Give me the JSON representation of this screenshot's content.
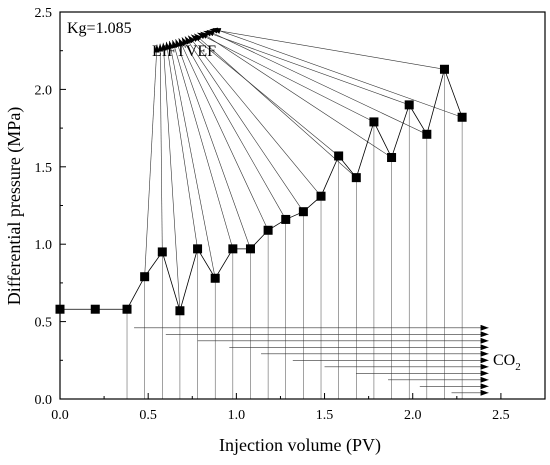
{
  "chart_data": {
    "type": "line",
    "xlabel": "Injection volume  (PV)",
    "ylabel": "Differential pressure  (MPa)",
    "xlim": [
      0,
      2.75
    ],
    "ylim": [
      0,
      2.5
    ],
    "x_ticks": [
      "0.0",
      "0.5",
      "1.0",
      "1.5",
      "2.0",
      "2.5"
    ],
    "y_ticks": [
      "0.0",
      "0.5",
      "1.0",
      "1.5",
      "2.0",
      "2.5"
    ],
    "series": [
      {
        "marker": "square",
        "color": "#000000",
        "x": [
          0.0,
          0.2,
          0.38,
          0.48,
          0.58,
          0.68,
          0.78,
          0.88,
          0.98,
          1.08,
          1.18,
          1.28,
          1.38,
          1.48,
          1.58,
          1.68,
          1.78,
          1.88,
          1.98,
          2.08,
          2.18,
          2.28
        ],
        "y": [
          0.58,
          0.58,
          0.58,
          0.79,
          0.95,
          0.57,
          0.97,
          0.78,
          0.97,
          0.97,
          1.09,
          1.16,
          1.21,
          1.31,
          1.57,
          1.43,
          1.79,
          1.56,
          1.9,
          1.71,
          2.13,
          1.82
        ]
      }
    ],
    "annotations": {
      "kg": "Kg=1.085",
      "liftvef": "LIFTVEF",
      "co2_main": "CO",
      "co2_sub": "2"
    }
  }
}
